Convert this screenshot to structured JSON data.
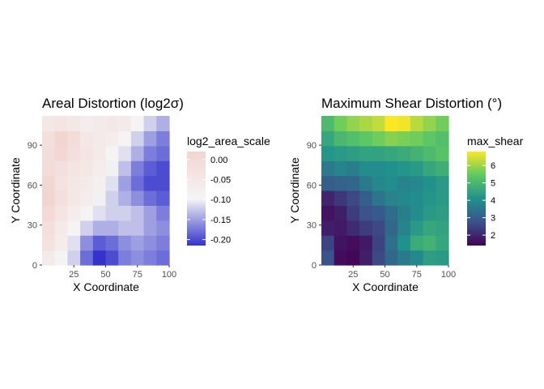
{
  "chart_data": [
    {
      "type": "heatmap",
      "title": "Areal Distortion (log2σ)",
      "xlabel": "X Coordinate",
      "ylabel": "Y Coordinate",
      "x_ticks": [
        "25",
        "50",
        "75",
        "100"
      ],
      "y_ticks": [
        "0",
        "30",
        "60",
        "90"
      ],
      "xlim": [
        0,
        100
      ],
      "ylim": [
        0,
        112
      ],
      "legend": {
        "title": "log2_area_scale",
        "ticks": [
          "0.00",
          "-0.05",
          "-0.10",
          "-0.15",
          "-0.20"
        ],
        "tick_values": [
          0.0,
          -0.05,
          -0.1,
          -0.15,
          -0.2
        ],
        "range": [
          -0.215,
          0.02
        ],
        "colors": [
          "#3333cc",
          "#f5f5f5",
          "#f2d4d0"
        ],
        "position": "right"
      },
      "grid": {
        "cols": 10,
        "rows": 10
      },
      "values": [
        [
          -0.06,
          -0.09,
          -0.12,
          -0.18,
          -0.215,
          -0.2,
          -0.17,
          -0.16,
          -0.17,
          -0.18
        ],
        [
          -0.03,
          -0.07,
          -0.11,
          -0.16,
          -0.19,
          -0.18,
          -0.16,
          -0.15,
          -0.16,
          -0.17
        ],
        [
          -0.02,
          -0.06,
          -0.09,
          -0.12,
          -0.14,
          -0.14,
          -0.13,
          -0.13,
          -0.15,
          -0.16
        ],
        [
          0.0,
          -0.04,
          -0.07,
          -0.09,
          -0.11,
          -0.12,
          -0.12,
          -0.13,
          -0.15,
          -0.17
        ],
        [
          0.02,
          -0.02,
          -0.05,
          -0.07,
          -0.1,
          -0.12,
          -0.14,
          -0.16,
          -0.18,
          -0.19
        ],
        [
          0.01,
          -0.03,
          -0.05,
          -0.06,
          -0.08,
          -0.11,
          -0.15,
          -0.18,
          -0.2,
          -0.2
        ],
        [
          -0.01,
          -0.02,
          -0.04,
          -0.05,
          -0.07,
          -0.1,
          -0.13,
          -0.17,
          -0.19,
          -0.2
        ],
        [
          -0.01,
          0.01,
          -0.02,
          -0.04,
          -0.06,
          -0.09,
          -0.11,
          -0.14,
          -0.17,
          -0.18
        ],
        [
          -0.02,
          0.02,
          -0.01,
          -0.05,
          -0.06,
          -0.07,
          -0.09,
          -0.12,
          -0.15,
          -0.17
        ],
        [
          -0.05,
          -0.04,
          -0.05,
          -0.07,
          -0.06,
          -0.05,
          -0.06,
          -0.09,
          -0.12,
          -0.14
        ]
      ]
    },
    {
      "type": "heatmap",
      "title": "Maximum Shear Distortion (°)",
      "xlabel": "X Coordinate",
      "ylabel": "Y Coordinate",
      "x_ticks": [
        "25",
        "50",
        "75",
        "100"
      ],
      "y_ticks": [
        "0",
        "30",
        "60",
        "90"
      ],
      "xlim": [
        0,
        100
      ],
      "ylim": [
        0,
        112
      ],
      "legend": {
        "title": "max_shear",
        "ticks": [
          "2",
          "3",
          "4",
          "5",
          "6"
        ],
        "tick_values": [
          2,
          3,
          4,
          5,
          6
        ],
        "range": [
          1.4,
          6.8
        ],
        "colors": [
          "#440154",
          "#3b528b",
          "#21918c",
          "#5ec962",
          "#fde725"
        ],
        "position": "right"
      },
      "grid": {
        "cols": 10,
        "rows": 10
      },
      "values": [
        [
          2.8,
          1.6,
          1.5,
          1.9,
          2.6,
          3.2,
          3.6,
          3.9,
          4.4,
          4.3
        ],
        [
          2.5,
          1.7,
          1.6,
          1.8,
          2.5,
          3.4,
          4.1,
          4.7,
          4.9,
          4.6
        ],
        [
          1.9,
          1.8,
          2.1,
          2.4,
          2.6,
          3.2,
          3.8,
          4.3,
          4.6,
          4.5
        ],
        [
          1.7,
          1.9,
          2.4,
          2.8,
          2.9,
          3.3,
          3.7,
          4.0,
          4.3,
          4.4
        ],
        [
          2.0,
          2.3,
          2.6,
          3.0,
          3.5,
          3.8,
          3.9,
          4.0,
          4.2,
          4.3
        ],
        [
          3.0,
          3.1,
          3.2,
          3.6,
          3.9,
          4.0,
          3.8,
          3.9,
          4.1,
          4.3
        ],
        [
          3.6,
          3.8,
          3.7,
          4.0,
          4.0,
          4.1,
          4.2,
          4.3,
          4.6,
          4.8
        ],
        [
          4.2,
          4.3,
          4.4,
          4.5,
          4.5,
          4.6,
          4.7,
          4.9,
          5.1,
          5.3
        ],
        [
          4.6,
          5.0,
          5.2,
          5.4,
          5.6,
          5.8,
          5.7,
          5.6,
          5.4,
          5.2
        ],
        [
          5.1,
          5.6,
          5.9,
          6.1,
          6.3,
          6.8,
          6.7,
          6.2,
          5.9,
          5.6
        ]
      ]
    }
  ]
}
